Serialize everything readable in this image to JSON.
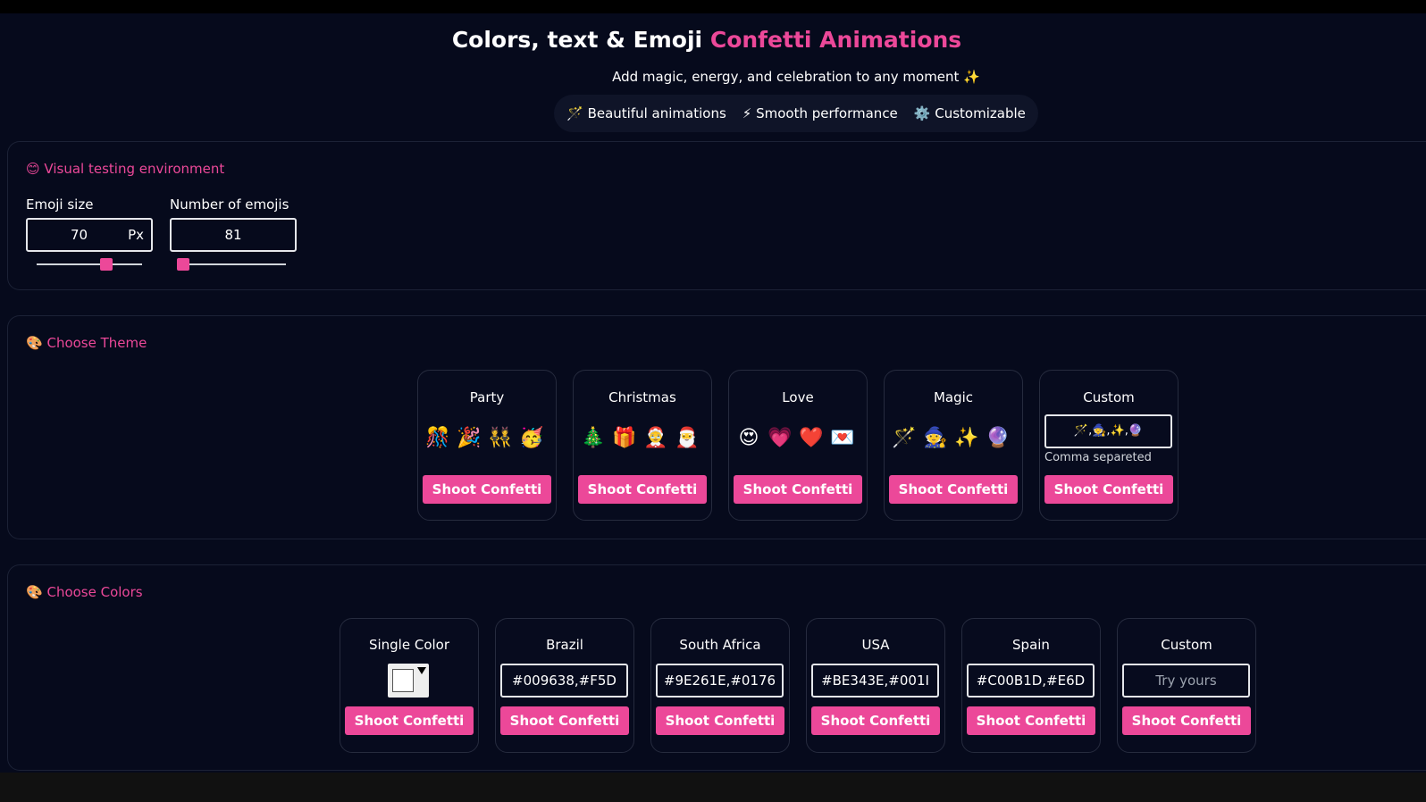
{
  "header": {
    "title": "Colors, text & Emoji",
    "title_highlight": "Confetti Animations",
    "subtitle": "Add magic, energy, and celebration to any moment ✨",
    "features": [
      "🪄 Beautiful animations",
      "⚡ Smooth performance",
      "⚙️ Customizable"
    ]
  },
  "testing": {
    "icon": "😊",
    "title": "Visual testing environment",
    "emoji_size": {
      "label": "Emoji size",
      "value": "70",
      "unit": "Px"
    },
    "emoji_count": {
      "label": "Number of emojis",
      "value": "81"
    }
  },
  "themes": {
    "icon": "🎨",
    "title": "Choose Theme",
    "cards": [
      {
        "name": "Party",
        "emojis": [
          "🎊",
          "🎉",
          "👯",
          "🥳"
        ],
        "button": "Shoot Confetti"
      },
      {
        "name": "Christmas",
        "emojis": [
          "🎄",
          "🎁",
          "🤶",
          "🎅"
        ],
        "button": "Shoot Confetti"
      },
      {
        "name": "Love",
        "emojis": [
          "😍",
          "💗",
          "❤️",
          "💌"
        ],
        "button": "Shoot Confetti"
      },
      {
        "name": "Magic",
        "emojis": [
          "🪄",
          "🧙",
          "✨",
          "🔮"
        ],
        "button": "Shoot Confetti"
      },
      {
        "name": "Custom",
        "input": "🪄,🧙,✨,🔮",
        "hint": "Comma separeted",
        "button": "Shoot Confetti"
      }
    ]
  },
  "colors": {
    "icon": "🎨",
    "title": "Choose Colors",
    "cards": [
      {
        "name": "Single Color",
        "button": "Shoot Confetti"
      },
      {
        "name": "Brazil",
        "input": "#009638,#F5D",
        "button": "Shoot Confetti"
      },
      {
        "name": "South Africa",
        "input": "#9E261E,#0176",
        "button": "Shoot Confetti"
      },
      {
        "name": "USA",
        "input": "#BE343E,#001I",
        "button": "Shoot Confetti"
      },
      {
        "name": "Spain",
        "input": "#C00B1D,#E6D",
        "button": "Shoot Confetti"
      },
      {
        "name": "Custom",
        "placeholder": "Try yours",
        "button": "Shoot Confetti"
      }
    ]
  }
}
